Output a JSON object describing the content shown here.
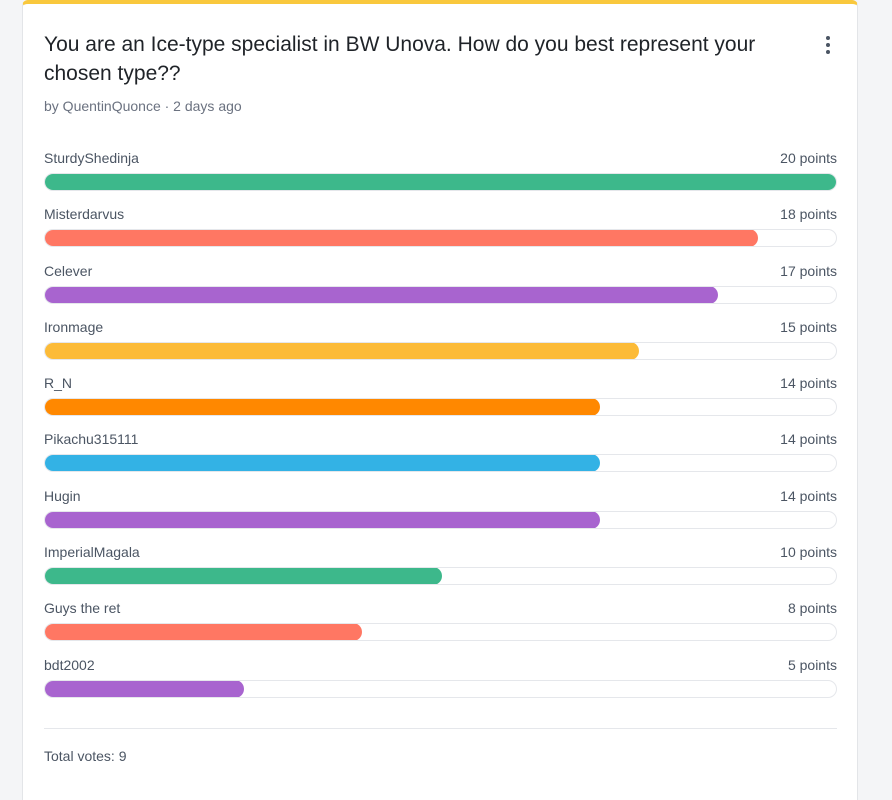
{
  "poll": {
    "title": "You are an Ice-type specialist in BW Unova. How do you best represent your chosen type??",
    "meta": "by QuentinQuonce · 2 days ago",
    "max_points": 20,
    "options": [
      {
        "label": "SturdyShedinja",
        "points": 20,
        "points_text": "20 points",
        "color": "#3db88b"
      },
      {
        "label": "Misterdarvus",
        "points": 18,
        "points_text": "18 points",
        "color": "#ff7763"
      },
      {
        "label": "Celever",
        "points": 17,
        "points_text": "17 points",
        "color": "#a864cf"
      },
      {
        "label": "Ironmage",
        "points": 15,
        "points_text": "15 points",
        "color": "#fcbb38"
      },
      {
        "label": "R_N",
        "points": 14,
        "points_text": "14 points",
        "color": "#ff8800"
      },
      {
        "label": "Pikachu315111",
        "points": 14,
        "points_text": "14 points",
        "color": "#33b2e5"
      },
      {
        "label": "Hugin",
        "points": 14,
        "points_text": "14 points",
        "color": "#a864cf"
      },
      {
        "label": "ImperialMagala",
        "points": 10,
        "points_text": "10 points",
        "color": "#3db88b"
      },
      {
        "label": "Guys the ret",
        "points": 8,
        "points_text": "8 points",
        "color": "#ff7763"
      },
      {
        "label": "bdt2002",
        "points": 5,
        "points_text": "5 points",
        "color": "#a864cf"
      }
    ],
    "total_votes": "Total votes: 9",
    "accent_color": "#f9c83d"
  }
}
